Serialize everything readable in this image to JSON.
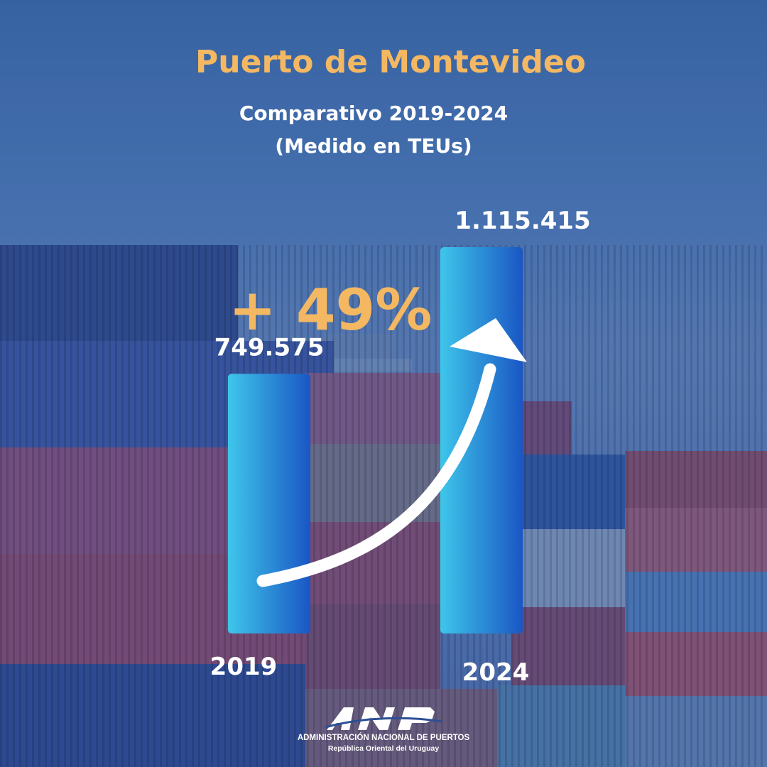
{
  "header": {
    "title": "Puerto de Montevideo",
    "subtitle_line1": "Comparativo 2019-2024",
    "subtitle_line2": "(Medido en TEUs)"
  },
  "growth_label": "+ 49%",
  "colors": {
    "accent": "#f4b862",
    "bar_light": "#3ec6ea",
    "bar_dark": "#1a56c4",
    "text": "#ffffff"
  },
  "chart_data": {
    "type": "bar",
    "categories": [
      "2019",
      "2024"
    ],
    "values": [
      749575,
      1115415
    ],
    "value_labels": [
      "749.575",
      "1.115.415"
    ],
    "ylim": [
      0,
      1115415
    ],
    "annotation": "+ 49%",
    "grid": false
  },
  "logo": {
    "mark_text": "ANP",
    "line1": "ADMINISTRACIÓN NACIONAL DE PUERTOS",
    "line2": "República Oriental del Uruguay"
  }
}
